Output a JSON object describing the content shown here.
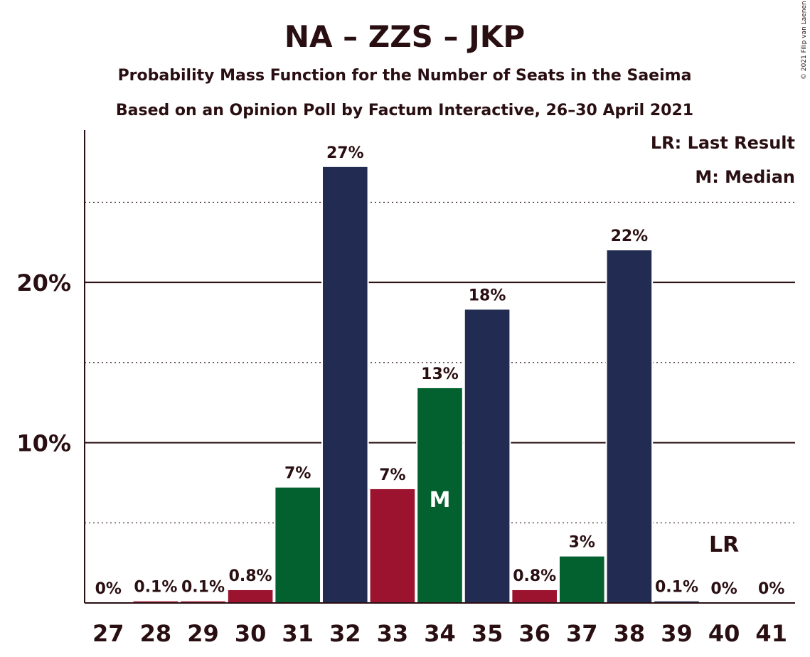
{
  "chart_data": {
    "type": "bar",
    "title": "NA – ZZS – JKP",
    "subtitle": "Probability Mass Function for the Number of Seats in the Saeima",
    "subtitle2": "Based on an Opinion Poll by Factum Interactive, 26–30 April 2021",
    "categories": [
      "27",
      "28",
      "29",
      "30",
      "31",
      "32",
      "33",
      "34",
      "35",
      "36",
      "37",
      "38",
      "39",
      "40",
      "41"
    ],
    "values": [
      0,
      0.1,
      0.1,
      0.8,
      7.2,
      27.2,
      7.1,
      13.4,
      18.3,
      0.8,
      2.9,
      22.0,
      0.1,
      0,
      0
    ],
    "value_labels": [
      "0%",
      "0.1%",
      "0.1%",
      "0.8%",
      "7%",
      "27%",
      "7%",
      "13%",
      "18%",
      "0.8%",
      "3%",
      "22%",
      "0.1%",
      "0%",
      "0%"
    ],
    "bar_colors": [
      "#2a0f12",
      "#9b132f",
      "#9b132f",
      "#9b132f",
      "#02612f",
      "#222b52",
      "#9b132f",
      "#02612f",
      "#222b52",
      "#9b132f",
      "#02612f",
      "#222b52",
      "#222b52",
      "#222b52",
      "#222b52"
    ],
    "yticks": [
      {
        "value": 10,
        "label": "10%"
      },
      {
        "value": 20,
        "label": "20%"
      }
    ],
    "minor_gridlines": [
      5,
      15,
      25
    ],
    "ylim": [
      0,
      29.5
    ],
    "median": {
      "category": "34",
      "label": "M"
    },
    "last_result": {
      "category": "40",
      "label": "LR"
    },
    "legend": [
      "LR: Last Result",
      "M: Median"
    ],
    "copyright": "© 2021 Filip van Laenen"
  }
}
